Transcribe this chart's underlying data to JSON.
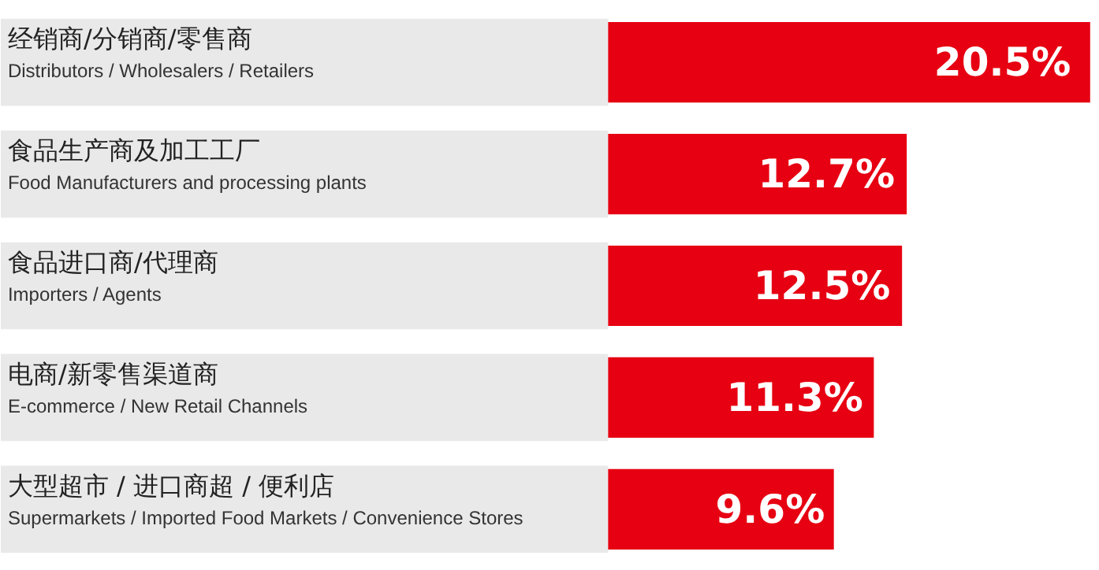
{
  "chart_data": {
    "type": "bar",
    "orientation": "horizontal",
    "categories": [
      "经销商/分销商/零售商\nDistributors / Wholesalers / Retailers",
      "食品生产商及加工工厂\nFood Manufacturers and processing plants",
      "食品进口商/代理商\nImporters / Agents",
      "电商/新零售渠道商\nE-commerce / New Retail Channels",
      "大型超市 / 进口商超 / 便利店\nSupermarkets / Imported Food Markets / Convenience Stores"
    ],
    "values": [
      20.5,
      12.7,
      12.5,
      11.3,
      9.6
    ],
    "value_labels": [
      "20.5%",
      "12.7%",
      "12.5%",
      "11.3%",
      "9.6%"
    ],
    "color": "#e60012"
  }
}
